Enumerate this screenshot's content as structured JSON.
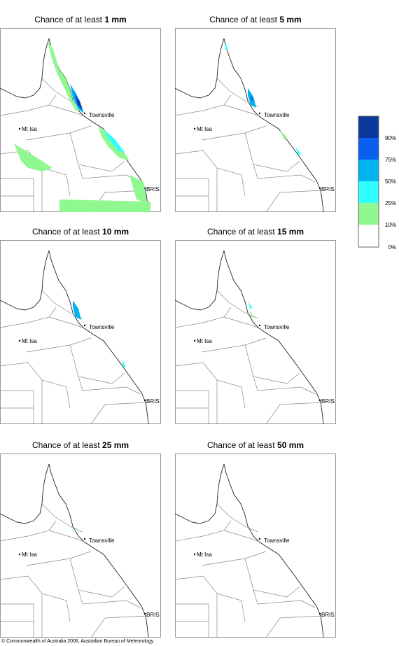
{
  "panels": [
    {
      "title": "Chance of at least ",
      "amount": "1 mm"
    },
    {
      "title": "Chance of at least ",
      "amount": "5 mm"
    },
    {
      "title": "Chance of at least ",
      "amount": "10 mm"
    },
    {
      "title": "Chance of at least ",
      "amount": "15 mm"
    },
    {
      "title": "Chance of at least ",
      "amount": "25 mm"
    },
    {
      "title": "Chance of at least ",
      "amount": "50 mm"
    }
  ],
  "places": {
    "townsville": "Townsville",
    "mt_isa": "Mt Isa",
    "bris": "BRIS"
  },
  "legend": [
    "90%",
    "75%",
    "50%",
    "25%",
    "10%",
    "0%"
  ],
  "copyright": "© Commonwealth of Australia 2006, Australian Bureau of Meteorology"
}
